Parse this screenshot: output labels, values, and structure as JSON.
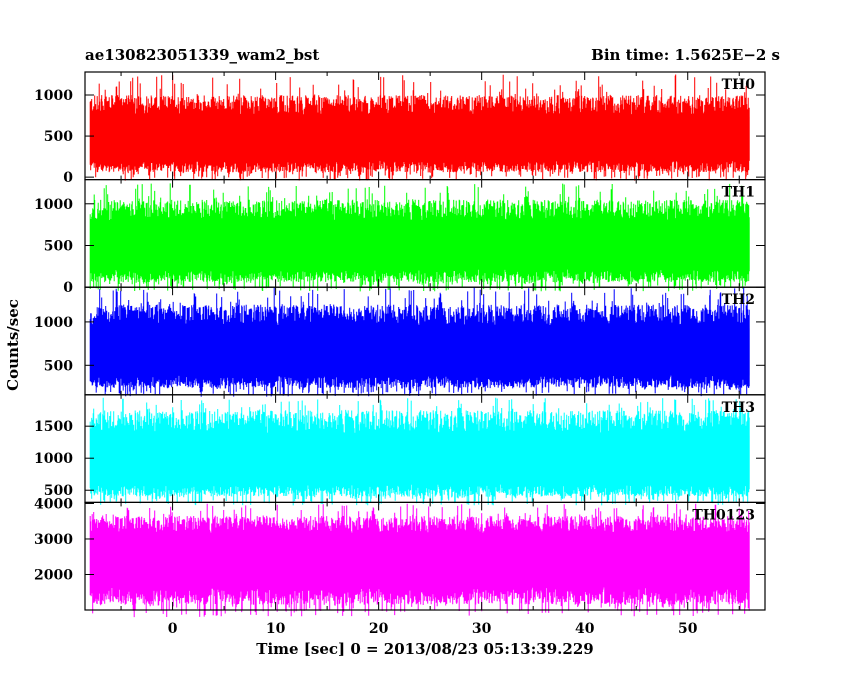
{
  "header": {
    "left_title": "ae130823051339_wam2_bst",
    "right_title": "Bin time: 1.5625E−2 s"
  },
  "axes": {
    "xlabel": "Time [sec] 0 = 2013/08/23 05:13:39.229",
    "ylabel": "Counts/sec"
  },
  "chart_data": {
    "type": "line",
    "title": "ae130823051339_wam2_bst",
    "subtitle": "Bin time: 1.5625E−2 s",
    "xlabel": "Time [sec] 0 = 2013/08/23 05:13:39.229",
    "ylabel": "Counts/sec",
    "xlim": [
      -8.5,
      57.5
    ],
    "x_data_range": [
      -8.0,
      56.0
    ],
    "xticks": [
      0,
      10,
      20,
      30,
      40,
      50
    ],
    "bin_time": 0.015625,
    "panels": [
      {
        "name": "TH0",
        "color": "#ff0000",
        "ylim": [
          -30,
          1280
        ],
        "yticks": [
          0,
          500,
          1000
        ],
        "mean": 470,
        "base": 60,
        "typical_max": 1000,
        "peak_max": 1250
      },
      {
        "name": "TH1",
        "color": "#00ff00",
        "ylim": [
          0,
          1290
        ],
        "yticks": [
          0,
          500,
          1000
        ],
        "mean": 500,
        "base": 60,
        "typical_max": 1050,
        "peak_max": 1250
      },
      {
        "name": "TH2",
        "color": "#0000ff",
        "ylim": [
          160,
          1400
        ],
        "yticks": [
          500,
          1000
        ],
        "mean": 650,
        "base": 240,
        "typical_max": 1200,
        "peak_max": 1400
      },
      {
        "name": "TH3",
        "color": "#00ffff",
        "ylim": [
          310,
          1990
        ],
        "yticks": [
          500,
          1000,
          1500
        ],
        "mean": 950,
        "base": 400,
        "typical_max": 1750,
        "peak_max": 1950
      },
      {
        "name": "TH0123",
        "color": "#ff00ff",
        "ylim": [
          1000,
          4030
        ],
        "yticks": [
          2000,
          3000,
          4000
        ],
        "mean": 2550,
        "base": 1150,
        "typical_max": 3650,
        "peak_max": 4000
      }
    ]
  }
}
